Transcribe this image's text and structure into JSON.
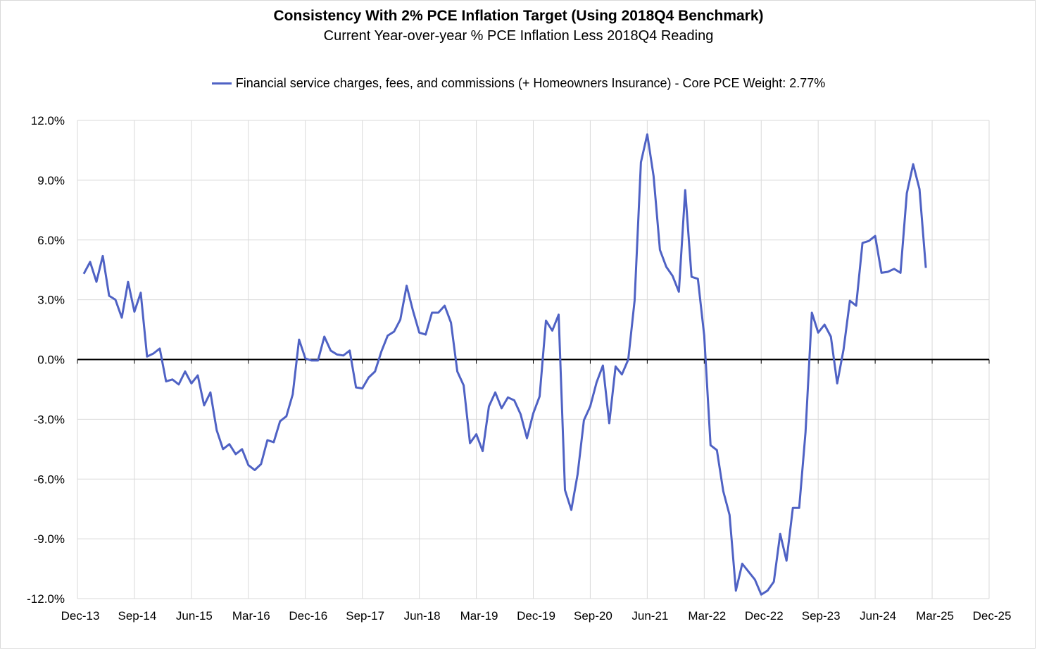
{
  "chart_data": {
    "type": "line",
    "title": "Consistency With 2% PCE Inflation Target (Using 2018Q4 Benchmark)",
    "subtitle": "Current Year-over-year % PCE Inflation Less 2018Q4 Reading",
    "xlabel": "",
    "ylabel": "",
    "legend_position": "top-center",
    "grid": true,
    "ylim": [
      -12,
      12
    ],
    "yticks": [
      12,
      9,
      6,
      3,
      0,
      -3,
      -6,
      -9,
      -12
    ],
    "ytick_labels": [
      "12.0%",
      "9.0%",
      "6.0%",
      "3.0%",
      "0.0%",
      "-3.0%",
      "-6.0%",
      "-9.0%",
      "-12.0%"
    ],
    "xtick_labels": [
      "Dec-13",
      "Sep-14",
      "Jun-15",
      "Mar-16",
      "Dec-16",
      "Sep-17",
      "Jun-18",
      "Mar-19",
      "Dec-19",
      "Sep-20",
      "Jun-21",
      "Mar-22",
      "Dec-22",
      "Sep-23",
      "Jun-24",
      "Mar-25",
      "Dec-25"
    ],
    "x_start": "Jan-14",
    "series": [
      {
        "name": "Financial service charges, fees, and commissions (+ Homeowners Insurance) - Core PCE Weight: 2.77%",
        "color": "#4f62c4",
        "values": [
          4.3,
          4.9,
          3.9,
          5.2,
          3.2,
          3.0,
          2.1,
          3.9,
          2.4,
          3.35,
          0.15,
          0.3,
          0.55,
          -1.1,
          -1.0,
          -1.25,
          -0.6,
          -1.2,
          -0.8,
          -2.3,
          -1.65,
          -3.55,
          -4.5,
          -4.25,
          -4.75,
          -4.5,
          -5.3,
          -5.55,
          -5.25,
          -4.05,
          -4.15,
          -3.1,
          -2.85,
          -1.75,
          1.0,
          0.05,
          -0.05,
          -0.05,
          1.15,
          0.45,
          0.25,
          0.2,
          0.45,
          -1.4,
          -1.45,
          -0.9,
          -0.6,
          0.4,
          1.2,
          1.4,
          2.0,
          3.7,
          2.45,
          1.35,
          1.25,
          2.35,
          2.35,
          2.7,
          1.85,
          -0.6,
          -1.3,
          -4.2,
          -3.75,
          -4.6,
          -2.35,
          -1.65,
          -2.45,
          -1.9,
          -2.05,
          -2.75,
          -3.95,
          -2.7,
          -1.85,
          1.95,
          1.45,
          2.25,
          -6.55,
          -7.55,
          -5.75,
          -3.05,
          -2.35,
          -1.15,
          -0.3,
          -3.2,
          -0.35,
          -0.75,
          0.0,
          2.95,
          9.9,
          11.3,
          9.2,
          5.5,
          4.65,
          4.2,
          3.4,
          8.5,
          4.15,
          4.05,
          1.2,
          -4.3,
          -4.55,
          -6.6,
          -7.8,
          -11.6,
          -10.25,
          -10.65,
          -11.05,
          -11.8,
          -11.6,
          -11.15,
          -8.75,
          -10.1,
          -7.45,
          -7.45,
          -3.65,
          2.35,
          1.35,
          1.75,
          1.15,
          -1.2,
          0.5,
          2.95,
          2.7,
          5.85,
          5.95,
          6.2,
          4.35,
          4.4,
          4.55,
          4.35,
          8.35,
          9.8,
          8.55,
          4.6
        ]
      }
    ]
  }
}
